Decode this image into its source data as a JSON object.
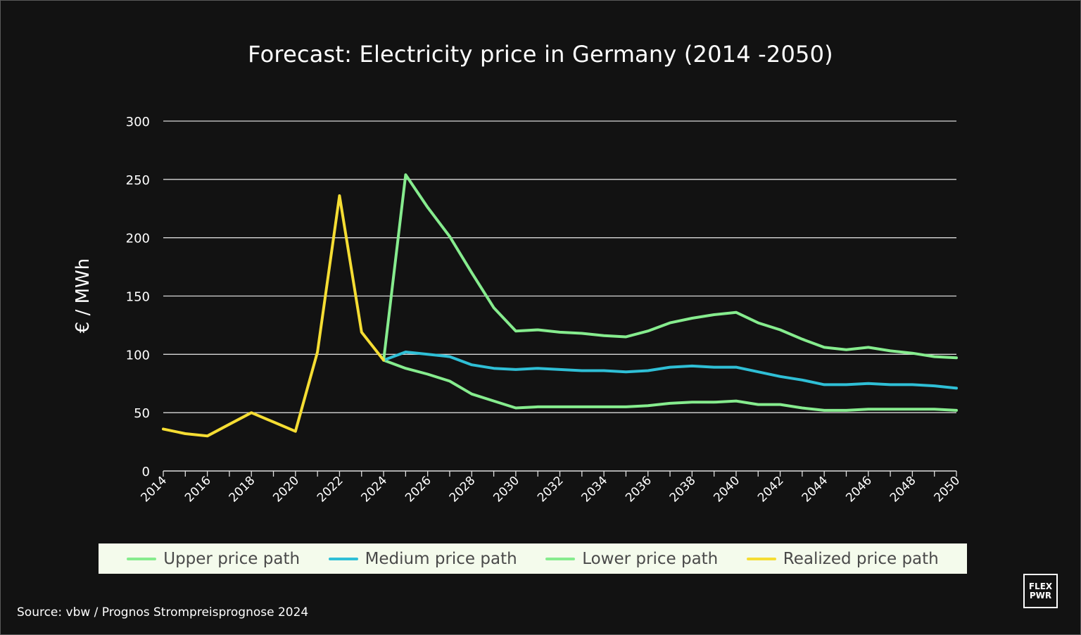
{
  "title": "Forecast: Electricity price in Germany (2014 -2050)",
  "source": "Source: vbw / Prognos Strompreisprognose 2024",
  "logo": {
    "line1": "FLEX",
    "line2": "PWR"
  },
  "chart_data": {
    "type": "line",
    "title": "Forecast: Electricity price in Germany (2014 -2050)",
    "xlabel": "",
    "ylabel": "€ / MWh",
    "ylim": [
      0,
      300
    ],
    "yticks": [
      "0",
      "50",
      "100",
      "150",
      "200",
      "250",
      "300"
    ],
    "xlim": [
      2014,
      2050
    ],
    "xticks": [
      "2014",
      "2016",
      "2018",
      "2020",
      "2022",
      "2024",
      "2026",
      "2028",
      "2030",
      "2032",
      "2034",
      "2036",
      "2038",
      "2040",
      "2042",
      "2044",
      "2046",
      "2048",
      "2050"
    ],
    "grid": true,
    "legend_position": "bottom",
    "series": [
      {
        "name": "Upper price path",
        "color": "#86ec8e",
        "x": [
          2024,
          2025,
          2026,
          2027,
          2028,
          2029,
          2030,
          2031,
          2032,
          2033,
          2034,
          2035,
          2036,
          2037,
          2038,
          2039,
          2040,
          2041,
          2042,
          2043,
          2044,
          2045,
          2046,
          2047,
          2048,
          2049,
          2050
        ],
        "values": [
          95,
          254,
          226,
          201,
          170,
          140,
          120,
          121,
          119,
          118,
          116,
          115,
          120,
          127,
          131,
          134,
          136,
          127,
          121,
          113,
          106,
          104,
          106,
          103,
          101,
          98,
          97
        ]
      },
      {
        "name": "Medium price path",
        "color": "#2fbfd6",
        "x": [
          2024,
          2025,
          2026,
          2027,
          2028,
          2029,
          2030,
          2031,
          2032,
          2033,
          2034,
          2035,
          2036,
          2037,
          2038,
          2039,
          2040,
          2041,
          2042,
          2043,
          2044,
          2045,
          2046,
          2047,
          2048,
          2049,
          2050
        ],
        "values": [
          95,
          102,
          100,
          98,
          91,
          88,
          87,
          88,
          87,
          86,
          86,
          85,
          86,
          89,
          90,
          89,
          89,
          85,
          81,
          78,
          74,
          74,
          75,
          74,
          74,
          73,
          71
        ]
      },
      {
        "name": "Lower price path",
        "color": "#86ec8e",
        "x": [
          2024,
          2025,
          2026,
          2027,
          2028,
          2029,
          2030,
          2031,
          2032,
          2033,
          2034,
          2035,
          2036,
          2037,
          2038,
          2039,
          2040,
          2041,
          2042,
          2043,
          2044,
          2045,
          2046,
          2047,
          2048,
          2049,
          2050
        ],
        "values": [
          95,
          88,
          83,
          77,
          66,
          60,
          54,
          55,
          55,
          55,
          55,
          55,
          56,
          58,
          59,
          59,
          60,
          57,
          57,
          54,
          52,
          52,
          53,
          53,
          53,
          53,
          52
        ]
      },
      {
        "name": "Realized price path",
        "color": "#f5dd33",
        "x": [
          2014,
          2015,
          2016,
          2017,
          2018,
          2019,
          2020,
          2021,
          2022,
          2023,
          2024
        ],
        "values": [
          36,
          32,
          30,
          40,
          50,
          42,
          34,
          102,
          236,
          119,
          95
        ]
      }
    ]
  }
}
